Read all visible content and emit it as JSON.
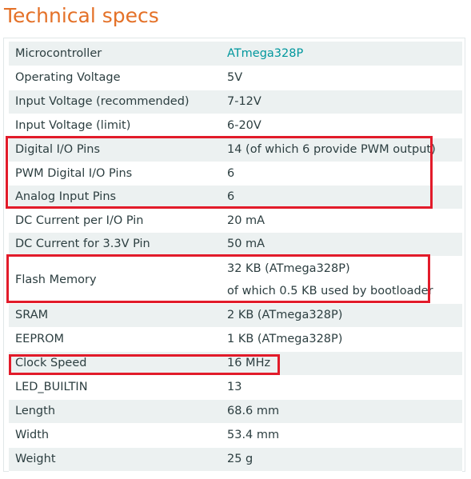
{
  "title": "Technical specs",
  "colors": {
    "title": "#e47128",
    "link": "#00979d",
    "highlight": "#e21b2a",
    "row_alt": "#ecf1f1"
  },
  "rows": [
    {
      "label": "Microcontroller",
      "value": "ATmega328P",
      "link": true
    },
    {
      "label": "Operating Voltage",
      "value": "5V"
    },
    {
      "label": "Input Voltage (recommended)",
      "value": "7-12V"
    },
    {
      "label": "Input Voltage (limit)",
      "value": "6-20V"
    },
    {
      "label": "Digital I/O Pins",
      "value": "14 (of which 6 provide PWM output)"
    },
    {
      "label": "PWM Digital I/O Pins",
      "value": "6"
    },
    {
      "label": "Analog Input Pins",
      "value": "6"
    },
    {
      "label": "DC Current per I/O Pin",
      "value": "20 mA"
    },
    {
      "label": "DC Current for 3.3V Pin",
      "value": "50 mA"
    },
    {
      "label": "Flash Memory",
      "value": "32 KB (ATmega328P)",
      "value2": "of which 0.5 KB used by bootloader"
    },
    {
      "label": "SRAM",
      "value": "2 KB (ATmega328P)"
    },
    {
      "label": "EEPROM",
      "value": "1 KB (ATmega328P)"
    },
    {
      "label": "Clock Speed",
      "value": "16 MHz"
    },
    {
      "label": "LED_BUILTIN",
      "value": "13"
    },
    {
      "label": "Length",
      "value": "68.6 mm"
    },
    {
      "label": "Width",
      "value": "53.4 mm"
    },
    {
      "label": "Weight",
      "value": "25 g"
    }
  ]
}
